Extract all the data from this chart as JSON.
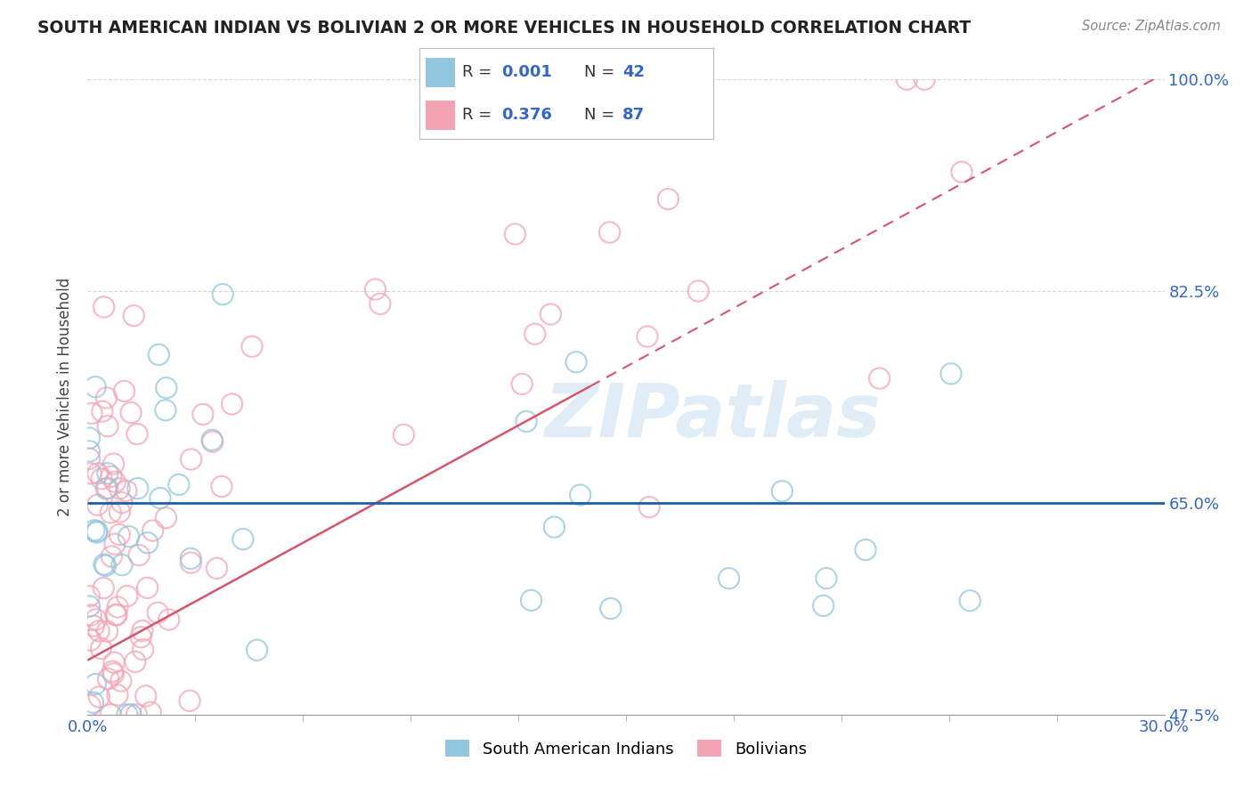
{
  "title": "SOUTH AMERICAN INDIAN VS BOLIVIAN 2 OR MORE VEHICLES IN HOUSEHOLD CORRELATION CHART",
  "source": "Source: ZipAtlas.com",
  "ylabel": "2 or more Vehicles in Household",
  "legend_label1": "South American Indians",
  "legend_label2": "Bolivians",
  "R1": "0.001",
  "N1": 42,
  "R2": "0.376",
  "N2": 87,
  "xlim": [
    0.0,
    30.0
  ],
  "ylim": [
    47.5,
    100.0
  ],
  "xtick_labels": [
    "0.0%",
    "30.0%"
  ],
  "ytick_labels": [
    "100.0%",
    "82.5%",
    "65.0%",
    "47.5%"
  ],
  "ytick_values": [
    100.0,
    82.5,
    65.0,
    47.5
  ],
  "color_blue": "#92c5de",
  "color_pink": "#f4a3b5",
  "line_blue": "#1a5fa8",
  "line_pink": "#d9546a",
  "background": "#ffffff",
  "grid_color": "#cccccc",
  "title_color": "#222222",
  "axis_label_color": "#444444",
  "tick_color": "#3366cc",
  "watermark_color": "#c8dff0",
  "blue_line_y": 65.0,
  "pink_line_x0": 0.0,
  "pink_line_y0": 52.0,
  "pink_line_x1": 30.0,
  "pink_line_y1": 100.5,
  "pink_solid_x_end": 14.0,
  "seed": 42
}
